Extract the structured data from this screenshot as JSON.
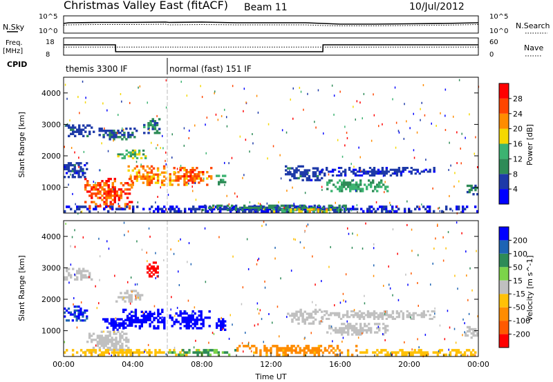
{
  "header": {
    "station": "Christmas Valley East (fitACF)",
    "beam": "Beam 11",
    "date": "10/Jul/2012"
  },
  "summary_labels": {
    "nsky": "N.Sky",
    "nsearch": "N.Search",
    "freq_line1": "Freq.",
    "freq_line2": "[MHz]",
    "nave": "Nave",
    "cpid": "CPID",
    "noise_ticks_left": [
      "10^5",
      "10^0"
    ],
    "noise_ticks_right": [
      "10^5",
      "10^0"
    ],
    "freq_ticks": [
      "18",
      "8"
    ],
    "nave_ticks": [
      "60",
      "0"
    ]
  },
  "cpid_modes": [
    {
      "label": "themis 3300 IF",
      "start": 0.0,
      "end": 6.0
    },
    {
      "label": "normal (fast) 151 IF",
      "start": 6.0,
      "end": 24.0
    }
  ],
  "colors": {
    "power_scale": [
      "#0000ff",
      "#1e3aa8",
      "#2e8b57",
      "#3cb371",
      "#f5d800",
      "#ff8c00",
      "#ff4500",
      "#ff0000"
    ],
    "velocity_scale": [
      "#0000ff",
      "#1e64b4",
      "#2e8b57",
      "#7cd34a",
      "#c0c0c0",
      "#ffc107",
      "#ff8c00",
      "#ff5a00",
      "#ff0000"
    ]
  },
  "chart_data": [
    {
      "type": "line",
      "panel": "noise",
      "x": [
        0,
        0.3,
        2,
        4,
        5.9,
        6.1,
        8,
        10,
        12,
        14,
        15,
        16,
        18,
        20,
        22,
        24
      ],
      "series": [
        {
          "name": "N.Sky",
          "values": [
            2.8,
            3.0,
            3.1,
            3.1,
            3.2,
            3.1,
            3.2,
            3.0,
            3.0,
            3.0,
            2.8,
            2.6,
            2.6,
            2.7,
            2.8,
            3.0
          ]
        },
        {
          "name": "N.Search",
          "values": [
            2.3,
            2.4,
            2.5,
            2.5,
            2.6,
            2.4,
            2.5,
            2.4,
            2.4,
            2.4,
            2.2,
            2.1,
            2.1,
            2.2,
            2.3,
            2.5
          ]
        }
      ],
      "ylim": [
        0,
        5
      ]
    },
    {
      "type": "line",
      "panel": "frequency",
      "x": [
        0,
        3.0,
        3.01,
        15.0,
        15.01,
        24
      ],
      "series": [
        {
          "name": "Freq.",
          "values": [
            14.0,
            14.0,
            10.0,
            10.0,
            14.0,
            14.0
          ],
          "ylim": [
            8,
            18
          ]
        },
        {
          "name": "Nave",
          "values": [
            28,
            28,
            28,
            28,
            28,
            28
          ],
          "ylim": [
            0,
            60
          ]
        }
      ]
    },
    {
      "type": "heatmap",
      "panel": "power",
      "xlabel": "",
      "ylabel": "Slant Range [km]",
      "zlabel": "Power [dB]",
      "xlim": [
        0,
        24
      ],
      "ylim": [
        180,
        4500
      ],
      "x_ticks": [
        "00:00",
        "04:00",
        "08:00",
        "12:00",
        "16:00",
        "20:00",
        "00:00"
      ],
      "y_ticks": [
        1000,
        2000,
        3000,
        4000
      ],
      "colorbar_ticks": [
        4,
        8,
        12,
        16,
        20,
        24,
        28
      ],
      "scale": [
        0,
        32
      ],
      "regions": [
        {
          "t0": 0.0,
          "t1": 1.8,
          "r0": 2600,
          "r1": 3000,
          "value": 6
        },
        {
          "t0": 1.9,
          "t1": 4.4,
          "r0": 2500,
          "r1": 2900,
          "value": 7
        },
        {
          "t0": 4.6,
          "t1": 5.6,
          "r0": 2700,
          "r1": 3200,
          "value": 10
        },
        {
          "t0": 3.1,
          "t1": 4.8,
          "r0": 1900,
          "r1": 2200,
          "value": 14
        },
        {
          "t0": 3.7,
          "t1": 6.0,
          "r0": 1050,
          "r1": 1700,
          "value": 22
        },
        {
          "t0": 6.1,
          "t1": 8.6,
          "r0": 1050,
          "r1": 1650,
          "value": 24
        },
        {
          "t0": 1.2,
          "t1": 4.0,
          "r0": 300,
          "r1": 1300,
          "value": 26
        },
        {
          "t0": 0.0,
          "t1": 1.4,
          "r0": 1300,
          "r1": 1800,
          "value": 6
        },
        {
          "t0": 8.8,
          "t1": 9.4,
          "r0": 1000,
          "r1": 1400,
          "value": 12
        },
        {
          "t0": 12.8,
          "t1": 15.0,
          "r0": 1200,
          "r1": 1700,
          "value": 6
        },
        {
          "t0": 15.2,
          "t1": 18.8,
          "r0": 850,
          "r1": 1250,
          "value": 12
        },
        {
          "t0": 14.8,
          "t1": 21.5,
          "r0": 1350,
          "r1": 1650,
          "value": 5
        },
        {
          "t0": 23.2,
          "t1": 24.0,
          "r0": 750,
          "r1": 1150,
          "value": 8
        },
        {
          "t0": 0.0,
          "t1": 24.0,
          "r0": 200,
          "r1": 420,
          "value": 4
        },
        {
          "t0": 8.0,
          "t1": 16.5,
          "r0": 250,
          "r1": 450,
          "value": 9
        },
        {
          "t0": 12.0,
          "t1": 16.0,
          "r0": 200,
          "r1": 330,
          "value": 18
        }
      ]
    },
    {
      "type": "heatmap",
      "panel": "velocity",
      "xlabel": "Time UT",
      "ylabel": "Slant Range [km]",
      "zlabel": "Velocity [m s^-1]",
      "xlim": [
        0,
        24
      ],
      "ylim": [
        180,
        4500
      ],
      "x_ticks": [
        "00:00",
        "04:00",
        "08:00",
        "12:00",
        "16:00",
        "20:00",
        "00:00"
      ],
      "y_ticks": [
        1000,
        2000,
        3000,
        4000
      ],
      "colorbar_ticks": [
        200,
        100,
        50,
        15,
        -15,
        -50,
        -100,
        -200
      ],
      "scale": [
        -250,
        250
      ],
      "regions": [
        {
          "t0": 0.0,
          "t1": 1.8,
          "r0": 2600,
          "r1": 3000,
          "value": 0
        },
        {
          "t0": 3.0,
          "t1": 4.6,
          "r0": 1900,
          "r1": 2300,
          "value": 0
        },
        {
          "t0": 4.8,
          "t1": 5.5,
          "r0": 2700,
          "r1": 3200,
          "value": -230
        },
        {
          "t0": 3.4,
          "t1": 6.0,
          "r0": 1050,
          "r1": 1700,
          "value": 230
        },
        {
          "t0": 6.1,
          "t1": 8.5,
          "r0": 1050,
          "r1": 1650,
          "value": 230
        },
        {
          "t0": 2.0,
          "t1": 4.0,
          "r0": 1000,
          "r1": 1400,
          "value": 210
        },
        {
          "t0": 1.2,
          "t1": 3.8,
          "r0": 300,
          "r1": 1000,
          "value": 0
        },
        {
          "t0": 0.0,
          "t1": 1.4,
          "r0": 1300,
          "r1": 1800,
          "value": 150
        },
        {
          "t0": 8.8,
          "t1": 9.4,
          "r0": 1000,
          "r1": 1400,
          "value": 220
        },
        {
          "t0": 12.8,
          "t1": 15.0,
          "r0": 1200,
          "r1": 1700,
          "value": 0
        },
        {
          "t0": 15.2,
          "t1": 18.8,
          "r0": 850,
          "r1": 1250,
          "value": 0
        },
        {
          "t0": 14.8,
          "t1": 21.5,
          "r0": 1350,
          "r1": 1650,
          "value": 0
        },
        {
          "t0": 23.2,
          "t1": 24.0,
          "r0": 750,
          "r1": 1150,
          "value": 0
        },
        {
          "t0": 0.0,
          "t1": 8.0,
          "r0": 200,
          "r1": 420,
          "value": -40
        },
        {
          "t0": 6.0,
          "t1": 10.0,
          "r0": 200,
          "r1": 420,
          "value": 30
        },
        {
          "t0": 10.0,
          "t1": 17.0,
          "r0": 200,
          "r1": 550,
          "value": -60
        },
        {
          "t0": 17.0,
          "t1": 24.0,
          "r0": 200,
          "r1": 420,
          "value": -30
        }
      ]
    }
  ]
}
